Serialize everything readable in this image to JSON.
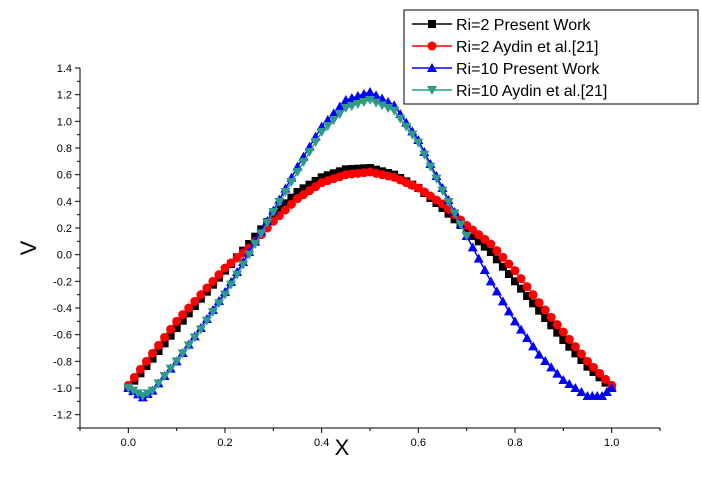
{
  "chart_data": {
    "type": "line",
    "xlabel": "X",
    "ylabel": "V",
    "xlim": [
      -0.1,
      1.1
    ],
    "ylim": [
      -1.3,
      1.4
    ],
    "x_ticks": [
      "0.0",
      "0.2",
      "0.4",
      "0.6",
      "0.8",
      "1.0"
    ],
    "y_ticks": [
      "-1.2",
      "-1.0",
      "-0.8",
      "-0.6",
      "-0.4",
      "-0.2",
      "0.0",
      "0.2",
      "0.4",
      "0.6",
      "0.8",
      "1.0",
      "1.2",
      "1.4"
    ],
    "legend_position": "top-right",
    "series": [
      {
        "name": "Ri=2  Present Work",
        "color": "#000000",
        "marker": "square",
        "x": [
          0.0,
          0.05,
          0.1,
          0.15,
          0.2,
          0.25,
          0.3,
          0.35,
          0.4,
          0.45,
          0.5,
          0.55,
          0.6,
          0.65,
          0.7,
          0.75,
          0.8,
          0.85,
          0.9,
          0.95,
          1.0
        ],
        "y": [
          -1.0,
          -0.78,
          -0.55,
          -0.33,
          -0.12,
          0.08,
          0.3,
          0.47,
          0.58,
          0.64,
          0.65,
          0.6,
          0.5,
          0.35,
          0.18,
          0.02,
          -0.2,
          -0.42,
          -0.64,
          -0.84,
          -1.0
        ]
      },
      {
        "name": "Ri=2  Aydin et al.[21]",
        "color": "#ff0000",
        "marker": "circle",
        "x": [
          0.0,
          0.05,
          0.1,
          0.15,
          0.2,
          0.25,
          0.3,
          0.35,
          0.4,
          0.45,
          0.5,
          0.55,
          0.6,
          0.65,
          0.7,
          0.75,
          0.8,
          0.85,
          0.9,
          0.95,
          1.0
        ],
        "y": [
          -0.98,
          -0.74,
          -0.5,
          -0.3,
          -0.1,
          0.05,
          0.25,
          0.42,
          0.54,
          0.6,
          0.62,
          0.58,
          0.5,
          0.38,
          0.22,
          0.08,
          -0.12,
          -0.36,
          -0.58,
          -0.8,
          -0.98
        ]
      },
      {
        "name": "Ri=10  Present Work",
        "color": "#0000ff",
        "marker": "triangle-up",
        "x": [
          0.0,
          0.03,
          0.05,
          0.1,
          0.15,
          0.2,
          0.25,
          0.3,
          0.35,
          0.4,
          0.45,
          0.5,
          0.55,
          0.6,
          0.65,
          0.7,
          0.75,
          0.8,
          0.85,
          0.9,
          0.95,
          0.98,
          1.0
        ],
        "y": [
          -1.0,
          -1.07,
          -1.02,
          -0.8,
          -0.55,
          -0.28,
          0.02,
          0.33,
          0.66,
          0.96,
          1.16,
          1.22,
          1.12,
          0.86,
          0.5,
          0.14,
          -0.2,
          -0.5,
          -0.75,
          -0.94,
          -1.06,
          -1.06,
          -1.0
        ]
      },
      {
        "name": "Ri=10  Aydin et al.[21]",
        "color": "#2e9a8c",
        "marker": "triangle-down",
        "x": [
          0.0,
          0.03,
          0.05,
          0.1,
          0.15,
          0.2,
          0.25,
          0.3,
          0.35,
          0.4,
          0.45,
          0.5,
          0.55,
          0.6,
          0.65,
          0.7
        ],
        "y": [
          -1.0,
          -1.06,
          -1.02,
          -0.8,
          -0.56,
          -0.3,
          0.0,
          0.32,
          0.62,
          0.92,
          1.1,
          1.16,
          1.08,
          0.84,
          0.48,
          0.14
        ]
      }
    ]
  }
}
